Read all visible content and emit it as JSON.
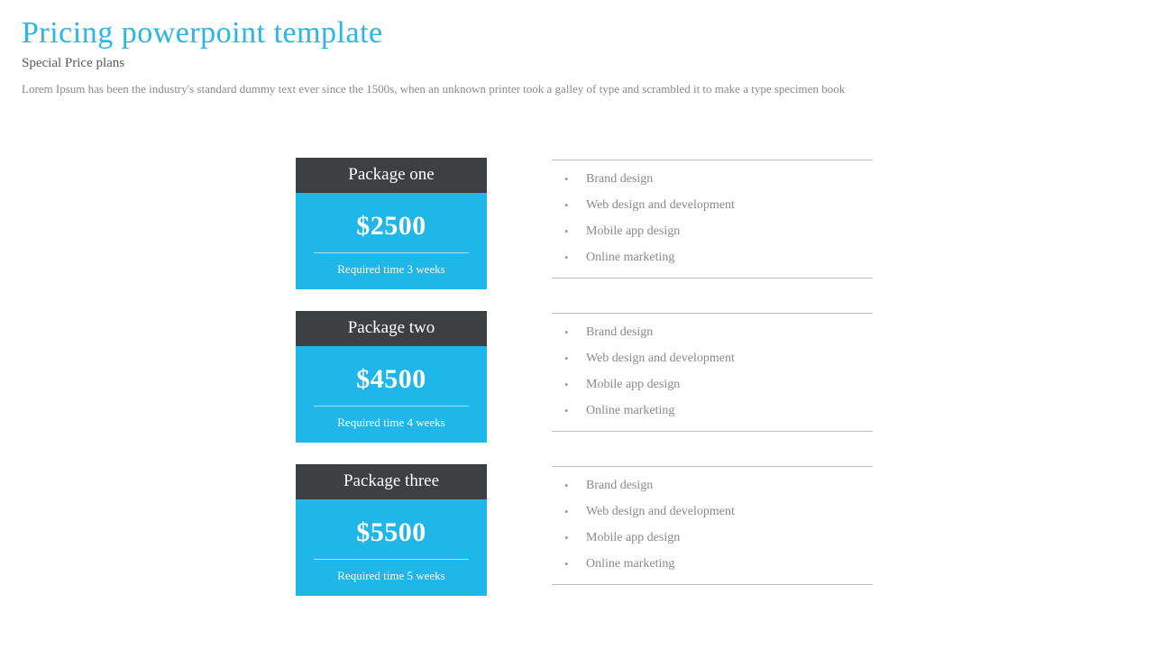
{
  "colors": {
    "title": "#29b6e8",
    "subtitle": "#5a5a5a",
    "desc": "#8a8a8a",
    "card_head_bg": "#3d4043",
    "card_body_bg": "#1fb7ea",
    "feature_text": "#8a8a8a",
    "bullet": "#9a9a9a",
    "hr": "#bfbfbf"
  },
  "header": {
    "title": "Pricing powerpoint template",
    "subtitle": "Special Price plans",
    "desc": "Lorem Ipsum has been the industry's standard dummy text ever since the 1500s, when an unknown printer took a galley of type and scrambled it to make a type specimen book"
  },
  "packages": [
    {
      "name": "Package one",
      "price": "$2500",
      "time": "Required time 3 weeks",
      "features": [
        "Brand design",
        "Web design and development",
        "Mobile app design",
        "Online marketing"
      ]
    },
    {
      "name": "Package two",
      "price": "$4500",
      "time": "Required time 4 weeks",
      "features": [
        "Brand design",
        "Web design and development",
        "Mobile app design",
        "Online marketing"
      ]
    },
    {
      "name": "Package three",
      "price": "$5500",
      "time": "Required time 5 weeks",
      "features": [
        "Brand design",
        "Web design and development",
        "Mobile app design",
        "Online marketing"
      ]
    }
  ]
}
